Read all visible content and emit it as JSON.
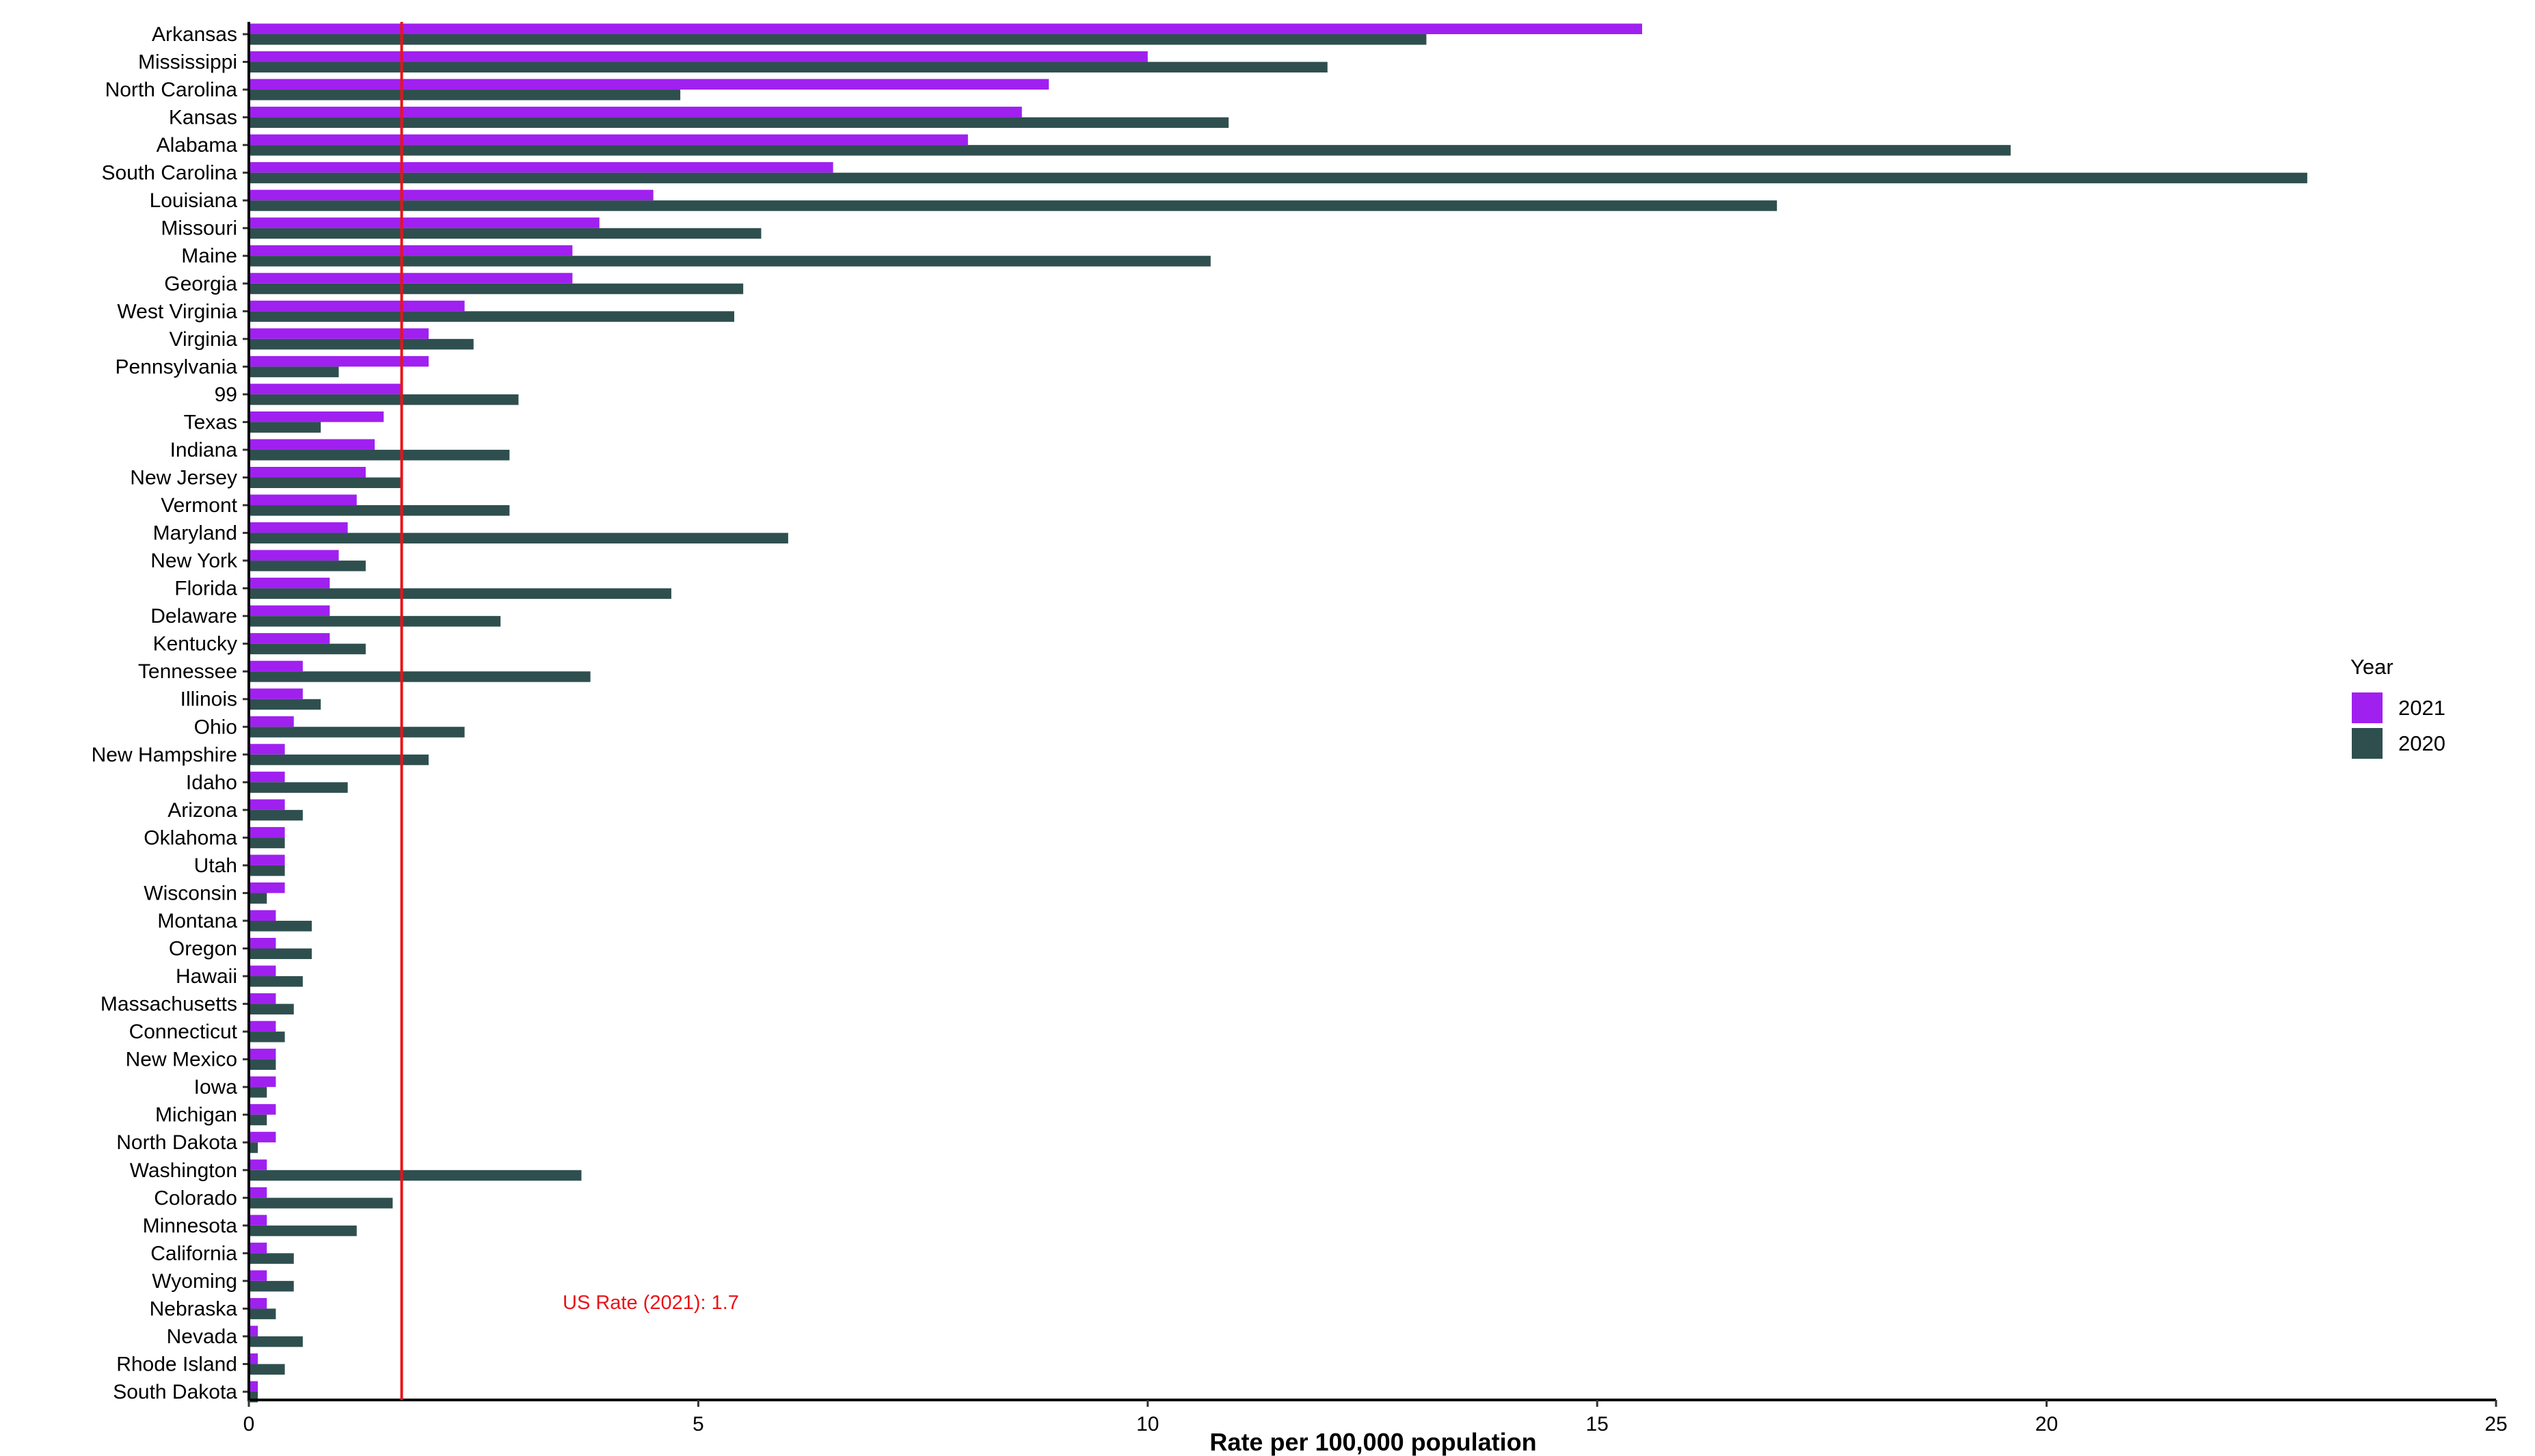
{
  "chart_data": {
    "type": "bar",
    "orientation": "horizontal",
    "xlabel": "Rate per 100,000 population",
    "ylabel": "",
    "xlim": [
      0,
      25
    ],
    "xticks": [
      0,
      5,
      10,
      15,
      20,
      25
    ],
    "grid": false,
    "legend": {
      "title": "Year",
      "position": "right"
    },
    "categories": [
      "Arkansas",
      "Mississippi",
      "North Carolina",
      "Kansas",
      "Alabama",
      "South Carolina",
      "Louisiana",
      "Missouri",
      "Maine",
      "Georgia",
      "West Virginia",
      "Virginia",
      "Pennsylvania",
      "99",
      "Texas",
      "Indiana",
      "New Jersey",
      "Vermont",
      "Maryland",
      "New York",
      "Florida",
      "Delaware",
      "Kentucky",
      "Tennessee",
      "Illinois",
      "Ohio",
      "New Hampshire",
      "Idaho",
      "Arizona",
      "Oklahoma",
      "Utah",
      "Wisconsin",
      "Montana",
      "Oregon",
      "Hawaii",
      "Massachusetts",
      "Connecticut",
      "New Mexico",
      "Iowa",
      "Michigan",
      "North Dakota",
      "Washington",
      "Colorado",
      "Minnesota",
      "California",
      "Wyoming",
      "Nebraska",
      "Nevada",
      "Rhode Island",
      "South Dakota"
    ],
    "series": [
      {
        "name": "2021",
        "color": "#a020f0",
        "values": [
          15.5,
          10,
          8.9,
          8.6,
          8,
          6.5,
          4.5,
          3.9,
          3.6,
          3.6,
          2.4,
          2,
          2,
          1.7,
          1.5,
          1.4,
          1.3,
          1.2,
          1.1,
          1,
          0.9,
          0.9,
          0.9,
          0.6,
          0.6,
          0.5,
          0.4,
          0.4,
          0.4,
          0.4,
          0.4,
          0.4,
          0.3,
          0.3,
          0.3,
          0.3,
          0.3,
          0.3,
          0.3,
          0.3,
          0.3,
          0.2,
          0.2,
          0.2,
          0.2,
          0.2,
          0.2,
          0.1,
          0.1,
          0.1
        ]
      },
      {
        "name": "2020",
        "color": "#2f4f4f",
        "values": [
          13.1,
          12,
          4.8,
          10.9,
          19.6,
          22.9,
          17,
          5.7,
          10.7,
          5.5,
          5.4,
          2.5,
          1,
          3,
          0.8,
          2.9,
          1.7,
          2.9,
          6,
          1.3,
          4.7,
          2.8,
          1.3,
          3.8,
          0.8,
          2.4,
          2,
          1.1,
          0.6,
          0.4,
          0.4,
          0.2,
          0.7,
          0.7,
          0.6,
          0.5,
          0.4,
          0.3,
          0.2,
          0.2,
          0.1,
          3.7,
          1.6,
          1.2,
          0.5,
          0.5,
          0.3,
          0.6,
          0.4,
          0.1
        ]
      }
    ],
    "reference_line": {
      "value": 1.7,
      "color": "#e8141a",
      "label": "US Rate (2021): 1.7"
    }
  }
}
